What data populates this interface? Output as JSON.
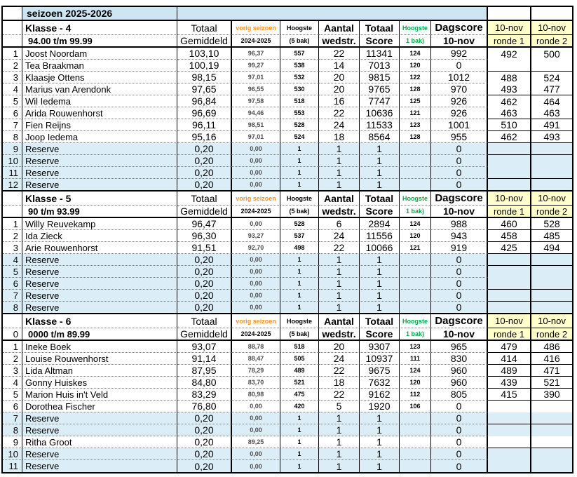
{
  "title": "seizoen 2025-2026",
  "colors": {
    "header_yellow": "#FFFFCC",
    "reserve_blue": "#DBEDF6",
    "title_blue": "#CDE6F2",
    "accent_orange": "#FF9326",
    "accent_green": "#00AE4D"
  },
  "column_headers": {
    "totaal": "Totaal",
    "gemiddeld": "Gemiddeld",
    "vorig_seizoen": "vorig seizoen",
    "vorig_jaren": "2024-2025",
    "hoogste": "Hoogste",
    "vijf_bak": "(5 bak)",
    "aantal": "Aantal",
    "wedstr": "wedstr.",
    "score": "Score",
    "een_bak": "1 bak)",
    "dagscore": "Dagscore",
    "dag_datum": "10-nov",
    "ronde_datum": "10-nov",
    "ronde1": "ronde 1",
    "ronde2": "ronde 2"
  },
  "sections": [
    {
      "klasse": "Klasse - 4",
      "nr_prefix": "",
      "range": "94.00 t/m 99.99",
      "rows": [
        {
          "nr": "1",
          "name": "Joost Noordam",
          "gem": "103,10",
          "vs": "96,37",
          "h5": "557",
          "wd": "22",
          "sc": "11341",
          "h1": "124",
          "ds": "992",
          "r1": "492",
          "r2": "500",
          "res": false,
          "mu": false
        },
        {
          "nr": "2",
          "name": "Tea Braakman",
          "gem": "100,19",
          "vs": "99,27",
          "h5": "538",
          "wd": "14",
          "sc": "7013",
          "h1": "120",
          "ds": "0",
          "r1": "",
          "r2": "",
          "res": false,
          "mu": true
        },
        {
          "nr": "3",
          "name": "Klaasje Ottens",
          "gem": "98,15",
          "vs": "97,01",
          "h5": "532",
          "wd": "20",
          "sc": "9815",
          "h1": "122",
          "ds": "1012",
          "r1": "488",
          "r2": "524",
          "res": false,
          "mu": false
        },
        {
          "nr": "4",
          "name": "Marius van Arendonk",
          "gem": "97,65",
          "vs": "96,55",
          "h5": "530",
          "wd": "20",
          "sc": "9765",
          "h1": "128",
          "ds": "970",
          "r1": "493",
          "r2": "477",
          "res": false,
          "mu": true
        },
        {
          "nr": "5",
          "name": "Wil Iedema",
          "gem": "96,84",
          "vs": "97,58",
          "h5": "518",
          "wd": "16",
          "sc": "7747",
          "h1": "125",
          "ds": "926",
          "r1": "462",
          "r2": "464",
          "res": false,
          "mu": false
        },
        {
          "nr": "6",
          "name": "Arida Rouwenhorst",
          "gem": "96,69",
          "vs": "94,46",
          "h5": "553",
          "wd": "22",
          "sc": "10636",
          "h1": "121",
          "ds": "926",
          "r1": "463",
          "r2": "463",
          "res": false,
          "mu": true
        },
        {
          "nr": "7",
          "name": "Fien Reijns",
          "gem": "96,11",
          "vs": "98,51",
          "h5": "528",
          "wd": "24",
          "sc": "11533",
          "h1": "123",
          "ds": "1001",
          "r1": "510",
          "r2": "491",
          "res": false,
          "mu": false
        },
        {
          "nr": "8",
          "name": "Joop Iedema",
          "gem": "95,16",
          "vs": "97,01",
          "h5": "524",
          "wd": "18",
          "sc": "8564",
          "h1": "128",
          "ds": "955",
          "r1": "462",
          "r2": "493",
          "res": false,
          "mu": false
        },
        {
          "nr": "9",
          "name": "Reserve",
          "gem": "0,20",
          "vs": "0,00",
          "h5": "1",
          "wd": "1",
          "sc": "1",
          "h1": "",
          "ds": "0",
          "r1": "",
          "r2": "",
          "res": true,
          "mu": false
        },
        {
          "nr": "10",
          "name": "Reserve",
          "gem": "0,20",
          "vs": "0,00",
          "h5": "1",
          "wd": "1",
          "sc": "1",
          "h1": "",
          "ds": "0",
          "r1": "",
          "r2": "",
          "res": true,
          "mu": false
        },
        {
          "nr": "11",
          "name": "Reserve",
          "gem": "0,20",
          "vs": "0,00",
          "h5": "1",
          "wd": "1",
          "sc": "1",
          "h1": "",
          "ds": "0",
          "r1": "",
          "r2": "",
          "res": true,
          "mu": true
        },
        {
          "nr": "12",
          "name": "Reserve",
          "gem": "0,20",
          "vs": "0,00",
          "h5": "1",
          "wd": "1",
          "sc": "1",
          "h1": "",
          "ds": "0",
          "r1": "",
          "r2": "",
          "res": true,
          "mu": false
        }
      ]
    },
    {
      "klasse": "Klasse - 5",
      "nr_prefix": "",
      "range": "90 t/m 93.99",
      "rows": [
        {
          "nr": "1",
          "name": "Willy Reuvekamp",
          "gem": "96,47",
          "vs": "0,00",
          "h5": "528",
          "wd": "6",
          "sc": "2894",
          "h1": "124",
          "ds": "988",
          "r1": "460",
          "r2": "528",
          "res": false,
          "mu": false
        },
        {
          "nr": "2",
          "name": "Ida Zieck",
          "gem": "96,30",
          "vs": "93,27",
          "h5": "537",
          "wd": "24",
          "sc": "11556",
          "h1": "120",
          "ds": "943",
          "r1": "458",
          "r2": "485",
          "res": false,
          "mu": false
        },
        {
          "nr": "3",
          "name": "Arie Rouwenhorst",
          "gem": "91,51",
          "vs": "92,70",
          "h5": "498",
          "wd": "22",
          "sc": "10066",
          "h1": "121",
          "ds": "919",
          "r1": "425",
          "r2": "494",
          "res": false,
          "mu": false
        },
        {
          "nr": "4",
          "name": "Reserve",
          "gem": "0,20",
          "vs": "0,00",
          "h5": "1",
          "wd": "1",
          "sc": "1",
          "h1": "",
          "ds": "0",
          "r1": "",
          "r2": "",
          "res": true,
          "mu": false
        },
        {
          "nr": "5",
          "name": "Reserve",
          "gem": "0,20",
          "vs": "0,00",
          "h5": "1",
          "wd": "1",
          "sc": "1",
          "h1": "",
          "ds": "0",
          "r1": "",
          "r2": "",
          "res": true,
          "mu": false
        },
        {
          "nr": "6",
          "name": "Reserve",
          "gem": "0,20",
          "vs": "0,00",
          "h5": "1",
          "wd": "1",
          "sc": "1",
          "h1": "",
          "ds": "0",
          "r1": "",
          "r2": "",
          "res": true,
          "mu": true
        },
        {
          "nr": "7",
          "name": "Reserve",
          "gem": "0,20",
          "vs": "0,00",
          "h5": "1",
          "wd": "1",
          "sc": "1",
          "h1": "",
          "ds": "0",
          "r1": "",
          "r2": "",
          "res": true,
          "mu": false
        },
        {
          "nr": "8",
          "name": "Reserve",
          "gem": "0,20",
          "vs": "0,00",
          "h5": "1",
          "wd": "1",
          "sc": "1",
          "h1": "",
          "ds": "0",
          "r1": "",
          "r2": "",
          "res": true,
          "mu": false
        }
      ]
    },
    {
      "klasse": "Klasse - 6",
      "nr_prefix": "0",
      "range": "0000 t/m 89.99",
      "rows": [
        {
          "nr": "1",
          "name": "Ineke Boek",
          "gem": "93,07",
          "vs": "88,78",
          "h5": "518",
          "wd": "20",
          "sc": "9307",
          "h1": "123",
          "ds": "965",
          "r1": "479",
          "r2": "486",
          "res": false,
          "mu": false
        },
        {
          "nr": "2",
          "name": "Louise Rouwenhorst",
          "gem": "91,14",
          "vs": "88,47",
          "h5": "505",
          "wd": "24",
          "sc": "10937",
          "h1": "111",
          "ds": "830",
          "r1": "414",
          "r2": "416",
          "res": false,
          "mu": false
        },
        {
          "nr": "3",
          "name": "Lida Altman",
          "gem": "87,95",
          "vs": "78,29",
          "h5": "489",
          "wd": "22",
          "sc": "9675",
          "h1": "124",
          "ds": "960",
          "r1": "489",
          "r2": "471",
          "res": false,
          "mu": false
        },
        {
          "nr": "4",
          "name": "Gonny Huiskes",
          "gem": "84,80",
          "vs": "83,70",
          "h5": "521",
          "wd": "18",
          "sc": "7632",
          "h1": "120",
          "ds": "960",
          "r1": "439",
          "r2": "521",
          "res": false,
          "mu": false
        },
        {
          "nr": "5",
          "name": "Marion Huis in't Veld",
          "gem": "83,29",
          "vs": "80,98",
          "h5": "475",
          "wd": "22",
          "sc": "9162",
          "h1": "112",
          "ds": "805",
          "r1": "415",
          "r2": "390",
          "res": false,
          "mu": false
        },
        {
          "nr": "6",
          "name": "Dorothea Fischer",
          "gem": "76,80",
          "vs": "0,00",
          "h5": "420",
          "wd": "5",
          "sc": "1920",
          "h1": "106",
          "ds": "0",
          "r1": "",
          "r2": "",
          "res": false,
          "mu": false
        },
        {
          "nr": "7",
          "name": "Reserve",
          "gem": "0,20",
          "vs": "0,00",
          "h5": "1",
          "wd": "1",
          "sc": "1",
          "h1": "",
          "ds": "0",
          "r1": "",
          "r2": "",
          "res": true,
          "mu": true
        },
        {
          "nr": "8",
          "name": "Reserve",
          "gem": "0,20",
          "vs": "0,00",
          "h5": "1",
          "wd": "1",
          "sc": "1",
          "h1": "",
          "ds": "0",
          "r1": "",
          "r2": "",
          "res": true,
          "mu": false
        },
        {
          "nr": "9",
          "name": "Ritha Groot",
          "gem": "0,20",
          "vs": "89,25",
          "h5": "1",
          "wd": "1",
          "sc": "1",
          "h1": "",
          "ds": "0",
          "r1": "",
          "r2": "",
          "res": false,
          "mu": true
        },
        {
          "nr": "10",
          "name": "Reserve",
          "gem": "0,20",
          "vs": "0,00",
          "h5": "1",
          "wd": "1",
          "sc": "1",
          "h1": "",
          "ds": "0",
          "r1": "",
          "r2": "",
          "res": true,
          "mu": false
        },
        {
          "nr": "11",
          "name": "Reserve",
          "gem": "0,20",
          "vs": "0,00",
          "h5": "1",
          "wd": "1",
          "sc": "1",
          "h1": "",
          "ds": "0",
          "r1": "",
          "r2": "",
          "res": true,
          "mu": true
        }
      ]
    }
  ]
}
